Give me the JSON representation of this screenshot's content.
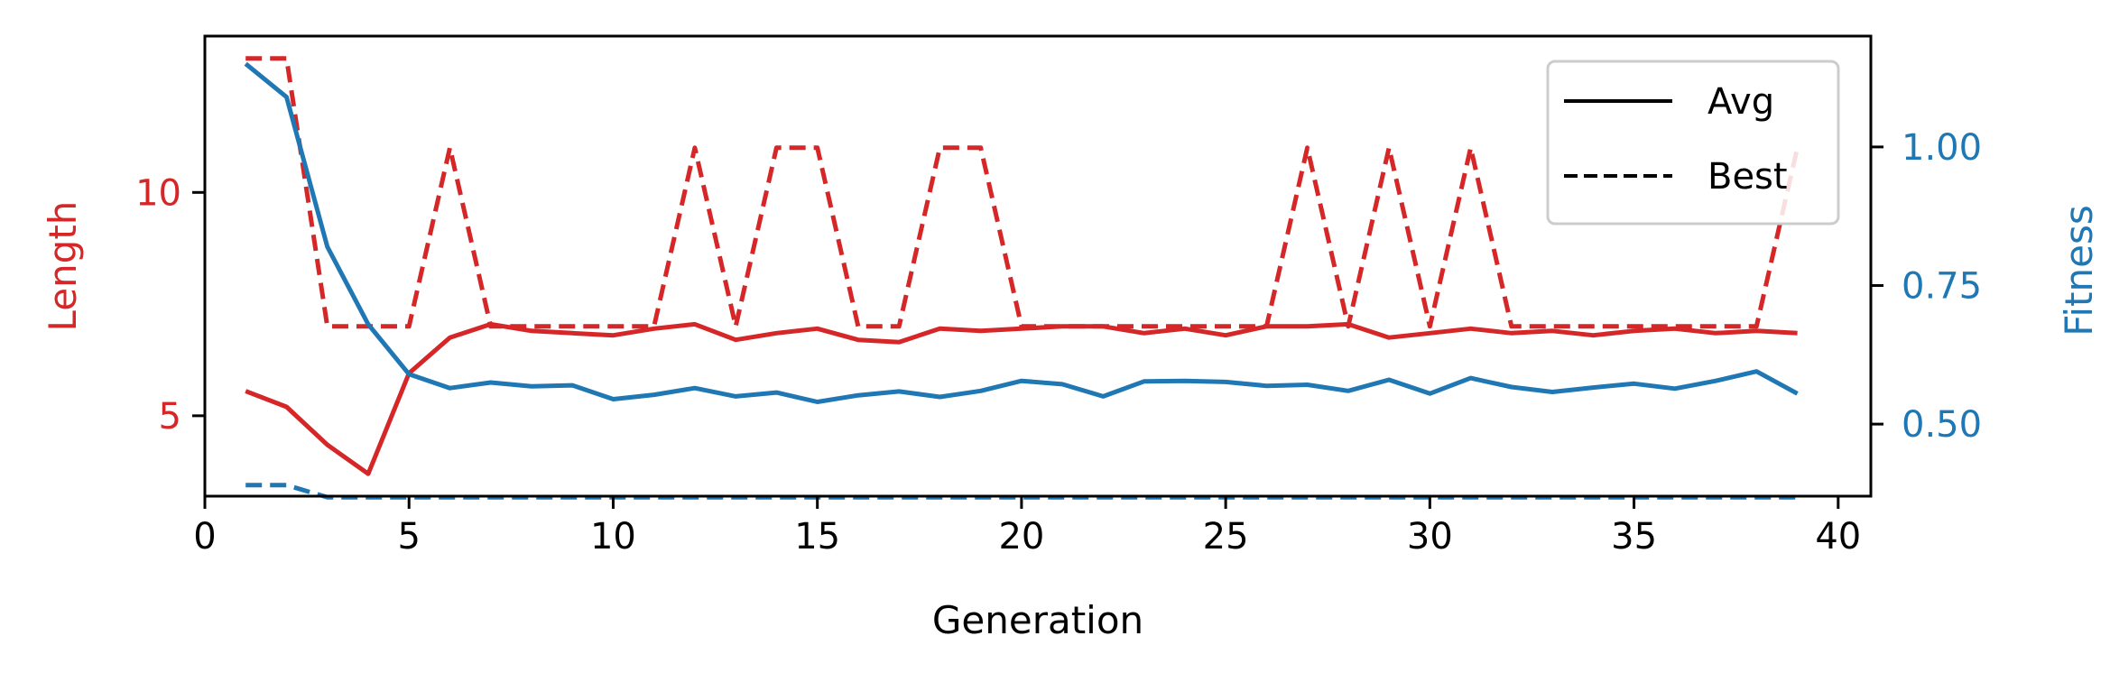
{
  "chart_data": {
    "type": "line",
    "title": "",
    "xlabel": "Generation",
    "ylabel_left": "Length",
    "ylabel_right": "Fitness",
    "xlim": [
      0,
      40.8
    ],
    "ylim_left": [
      3.2,
      13.5
    ],
    "ylim_right": [
      0.37,
      1.2
    ],
    "xticks": [
      0,
      5,
      10,
      15,
      20,
      25,
      30,
      35,
      40
    ],
    "yticks_left": [
      5,
      10
    ],
    "yticks_right": [
      0.5,
      0.75,
      1.0
    ],
    "ytick_labels_right": [
      "0.50",
      "0.75",
      "1.00"
    ],
    "grid": false,
    "legend": {
      "position": "upper-right",
      "entries": [
        {
          "label": "Avg",
          "style": "solid"
        },
        {
          "label": "Best",
          "style": "dashed"
        }
      ]
    },
    "colors": {
      "length": "#d62728",
      "fitness": "#1f77b4"
    },
    "x": [
      1,
      2,
      3,
      4,
      5,
      6,
      7,
      8,
      9,
      10,
      11,
      12,
      13,
      14,
      15,
      16,
      17,
      18,
      19,
      20,
      21,
      22,
      23,
      24,
      25,
      26,
      27,
      28,
      29,
      30,
      31,
      32,
      33,
      34,
      35,
      36,
      37,
      38,
      39
    ],
    "series": [
      {
        "name": "Avg",
        "quantity": "Length",
        "axis": "left",
        "style": "solid",
        "color": "#d62728",
        "values": [
          5.55,
          5.2,
          4.35,
          3.7,
          5.95,
          6.75,
          7.05,
          6.9,
          6.85,
          6.8,
          6.95,
          7.05,
          6.7,
          6.85,
          6.95,
          6.7,
          6.65,
          6.95,
          6.9,
          6.95,
          7.0,
          7.0,
          6.85,
          6.95,
          6.8,
          7.0,
          7.0,
          7.05,
          6.75,
          6.85,
          6.95,
          6.85,
          6.9,
          6.8,
          6.9,
          6.95,
          6.85,
          6.9,
          6.85
        ]
      },
      {
        "name": "Best",
        "quantity": "Length",
        "axis": "left",
        "style": "dashed",
        "color": "#d62728",
        "values": [
          13.0,
          13.0,
          7.0,
          7.0,
          7.0,
          11.0,
          7.0,
          7.0,
          7.0,
          7.0,
          7.0,
          11.0,
          7.0,
          11.0,
          11.0,
          7.0,
          7.0,
          11.0,
          11.0,
          7.0,
          7.0,
          7.0,
          7.0,
          7.0,
          7.0,
          7.0,
          11.0,
          7.0,
          11.0,
          7.0,
          11.0,
          7.0,
          7.0,
          7.0,
          7.0,
          7.0,
          7.0,
          7.0,
          11.0
        ]
      },
      {
        "name": "Avg",
        "quantity": "Fitness",
        "axis": "right",
        "style": "solid",
        "color": "#1f77b4",
        "values": [
          1.15,
          1.09,
          0.82,
          0.68,
          0.59,
          0.565,
          0.575,
          0.568,
          0.57,
          0.545,
          0.553,
          0.565,
          0.55,
          0.557,
          0.54,
          0.552,
          0.559,
          0.549,
          0.56,
          0.578,
          0.572,
          0.55,
          0.577,
          0.578,
          0.576,
          0.569,
          0.571,
          0.56,
          0.58,
          0.555,
          0.583,
          0.567,
          0.558,
          0.566,
          0.573,
          0.564,
          0.578,
          0.595,
          0.555
        ]
      },
      {
        "name": "Best",
        "quantity": "Fitness",
        "axis": "right",
        "style": "dashed",
        "color": "#1f77b4",
        "values": [
          0.39,
          0.39,
          0.368,
          0.368,
          0.368,
          0.368,
          0.368,
          0.368,
          0.368,
          0.368,
          0.368,
          0.368,
          0.368,
          0.368,
          0.368,
          0.368,
          0.368,
          0.368,
          0.368,
          0.368,
          0.368,
          0.368,
          0.368,
          0.368,
          0.368,
          0.368,
          0.368,
          0.368,
          0.368,
          0.368,
          0.368,
          0.368,
          0.368,
          0.368,
          0.368,
          0.368,
          0.368,
          0.368,
          0.368
        ]
      }
    ]
  }
}
